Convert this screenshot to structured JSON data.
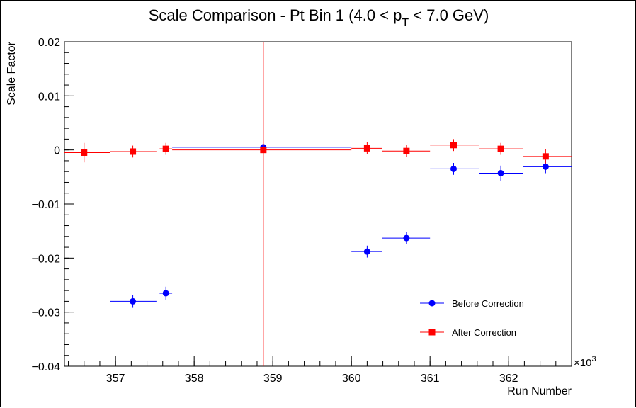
{
  "chart_data": {
    "type": "scatter",
    "title": "Scale Comparison - Pt Bin 1 (4.0 < p",
    "title_sub": "T",
    "title_tail": " < 7.0 GeV)",
    "xlabel": "Run Number",
    "ylabel": "Scale Factor",
    "x_multiplier": "×10",
    "x_multiplier_exp": "3",
    "xlim": [
      356.35,
      362.8
    ],
    "ylim": [
      -0.04,
      0.02
    ],
    "x_ticks": [
      357,
      358,
      359,
      360,
      361,
      362
    ],
    "x_tick_labels": [
      "357",
      "358",
      "359",
      "360",
      "361",
      "362"
    ],
    "y_ticks": [
      0.02,
      0.01,
      0,
      -0.01,
      -0.02,
      -0.03,
      -0.04
    ],
    "y_tick_labels": [
      "0.02",
      "0.01",
      "0",
      "−0.01",
      "−0.02",
      "−0.03",
      "−0.04"
    ],
    "legend_position": "bottom-right",
    "series": [
      {
        "name": "Before Correction",
        "color": "#0000ff",
        "marker": "circle",
        "points": [
          {
            "x": 357.22,
            "y": -0.028,
            "xlo": 356.93,
            "xhi": 357.52,
            "yerr": 0.0012
          },
          {
            "x": 357.64,
            "y": -0.0265,
            "xlo": 357.56,
            "xhi": 357.72,
            "yerr": 0.0012
          },
          {
            "x": 358.88,
            "y": 0.0005,
            "xlo": 357.72,
            "xhi": 360.0,
            "yerr": 0.0004
          },
          {
            "x": 360.2,
            "y": -0.0188,
            "xlo": 360.0,
            "xhi": 360.39,
            "yerr": 0.0011
          },
          {
            "x": 360.7,
            "y": -0.0163,
            "xlo": 360.39,
            "xhi": 361.0,
            "yerr": 0.0011
          },
          {
            "x": 361.3,
            "y": -0.0035,
            "xlo": 361.0,
            "xhi": 361.62,
            "yerr": 0.0011
          },
          {
            "x": 361.9,
            "y": -0.0043,
            "xlo": 361.62,
            "xhi": 362.18,
            "yerr": 0.0014
          },
          {
            "x": 362.47,
            "y": -0.0031,
            "xlo": 362.18,
            "xhi": 362.8,
            "yerr": 0.0012
          }
        ]
      },
      {
        "name": "After Correction",
        "color": "#ff0000",
        "marker": "square",
        "points": [
          {
            "x": 356.6,
            "y": -0.0005,
            "xlo": 356.35,
            "xhi": 356.93,
            "yerr": 0.0018
          },
          {
            "x": 357.22,
            "y": -0.0003,
            "xlo": 356.93,
            "xhi": 357.52,
            "yerr": 0.0011
          },
          {
            "x": 357.64,
            "y": 0.0002,
            "xlo": 357.56,
            "xhi": 357.72,
            "yerr": 0.0011
          },
          {
            "x": 358.88,
            "y": 0.0,
            "xlo": 357.72,
            "xhi": 360.0,
            "yerr": 0.04
          },
          {
            "x": 360.2,
            "y": 0.0003,
            "xlo": 360.0,
            "xhi": 360.39,
            "yerr": 0.0011
          },
          {
            "x": 360.7,
            "y": -0.0002,
            "xlo": 360.39,
            "xhi": 361.0,
            "yerr": 0.0011
          },
          {
            "x": 361.3,
            "y": 0.0009,
            "xlo": 361.0,
            "xhi": 361.62,
            "yerr": 0.0011
          },
          {
            "x": 361.9,
            "y": 0.0002,
            "xlo": 361.62,
            "xhi": 362.18,
            "yerr": 0.0011
          },
          {
            "x": 362.47,
            "y": -0.0012,
            "xlo": 362.18,
            "xhi": 362.8,
            "yerr": 0.0013
          }
        ]
      }
    ]
  }
}
